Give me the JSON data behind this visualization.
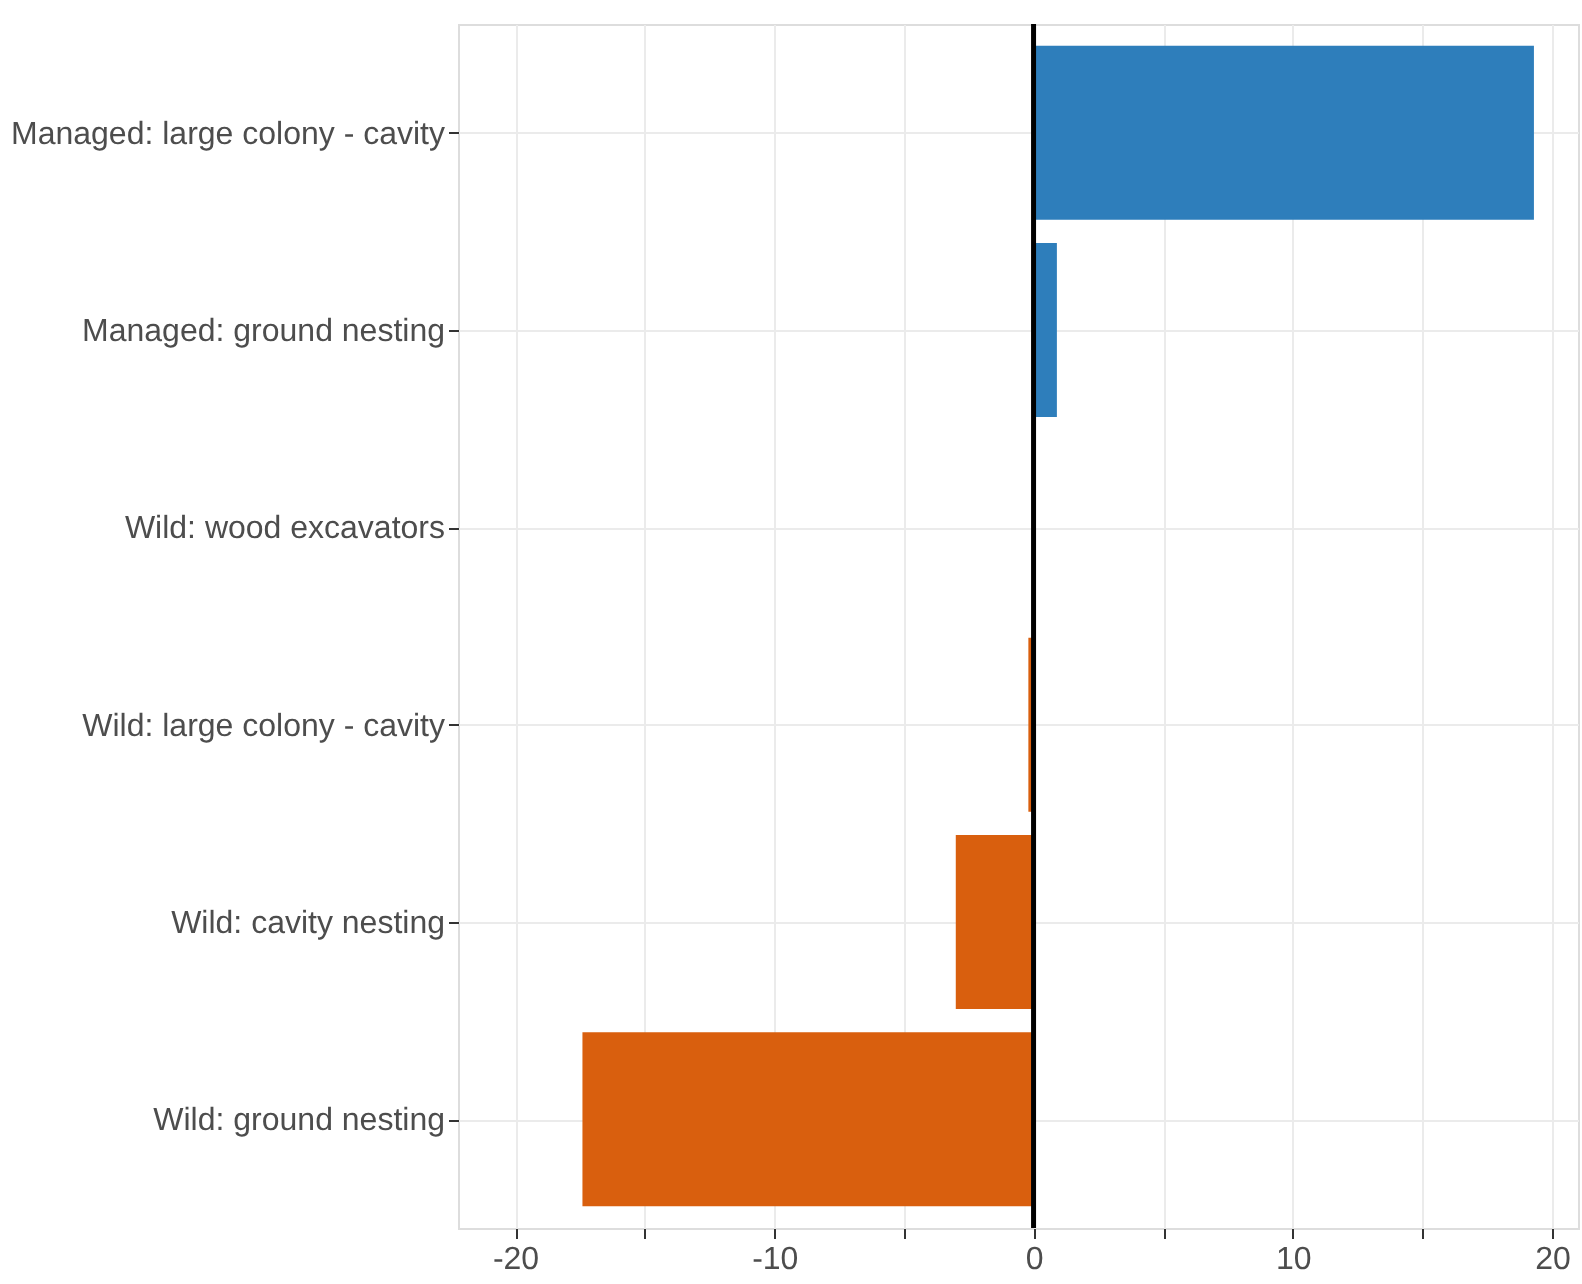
{
  "chart_data": {
    "type": "bar",
    "orientation": "horizontal",
    "categories": [
      "Managed: large colony - cavity",
      "Managed: ground nesting",
      "Wild: wood excavators",
      "Wild: large colony - cavity",
      "Wild: cavity nesting",
      "Wild: ground nesting"
    ],
    "values": [
      19.3,
      0.9,
      0,
      -0.2,
      -3.0,
      -17.4
    ],
    "colors": [
      "#2e7ebb",
      "#2e7ebb",
      "#d95f0e",
      "#d95f0e",
      "#d95f0e",
      "#d95f0e"
    ],
    "xlim": [
      -22.2,
      21
    ],
    "xticks": [
      -20,
      {
        "value": -15,
        "label": null
      },
      -10,
      {
        "value": -5,
        "label": null
      },
      0,
      {
        "value": 5,
        "label": null
      },
      10,
      {
        "value": 15,
        "label": null
      },
      20
    ],
    "grid": true,
    "ref_lines": [
      {
        "axis": "x",
        "value": 0,
        "color": "#000000"
      }
    ]
  }
}
